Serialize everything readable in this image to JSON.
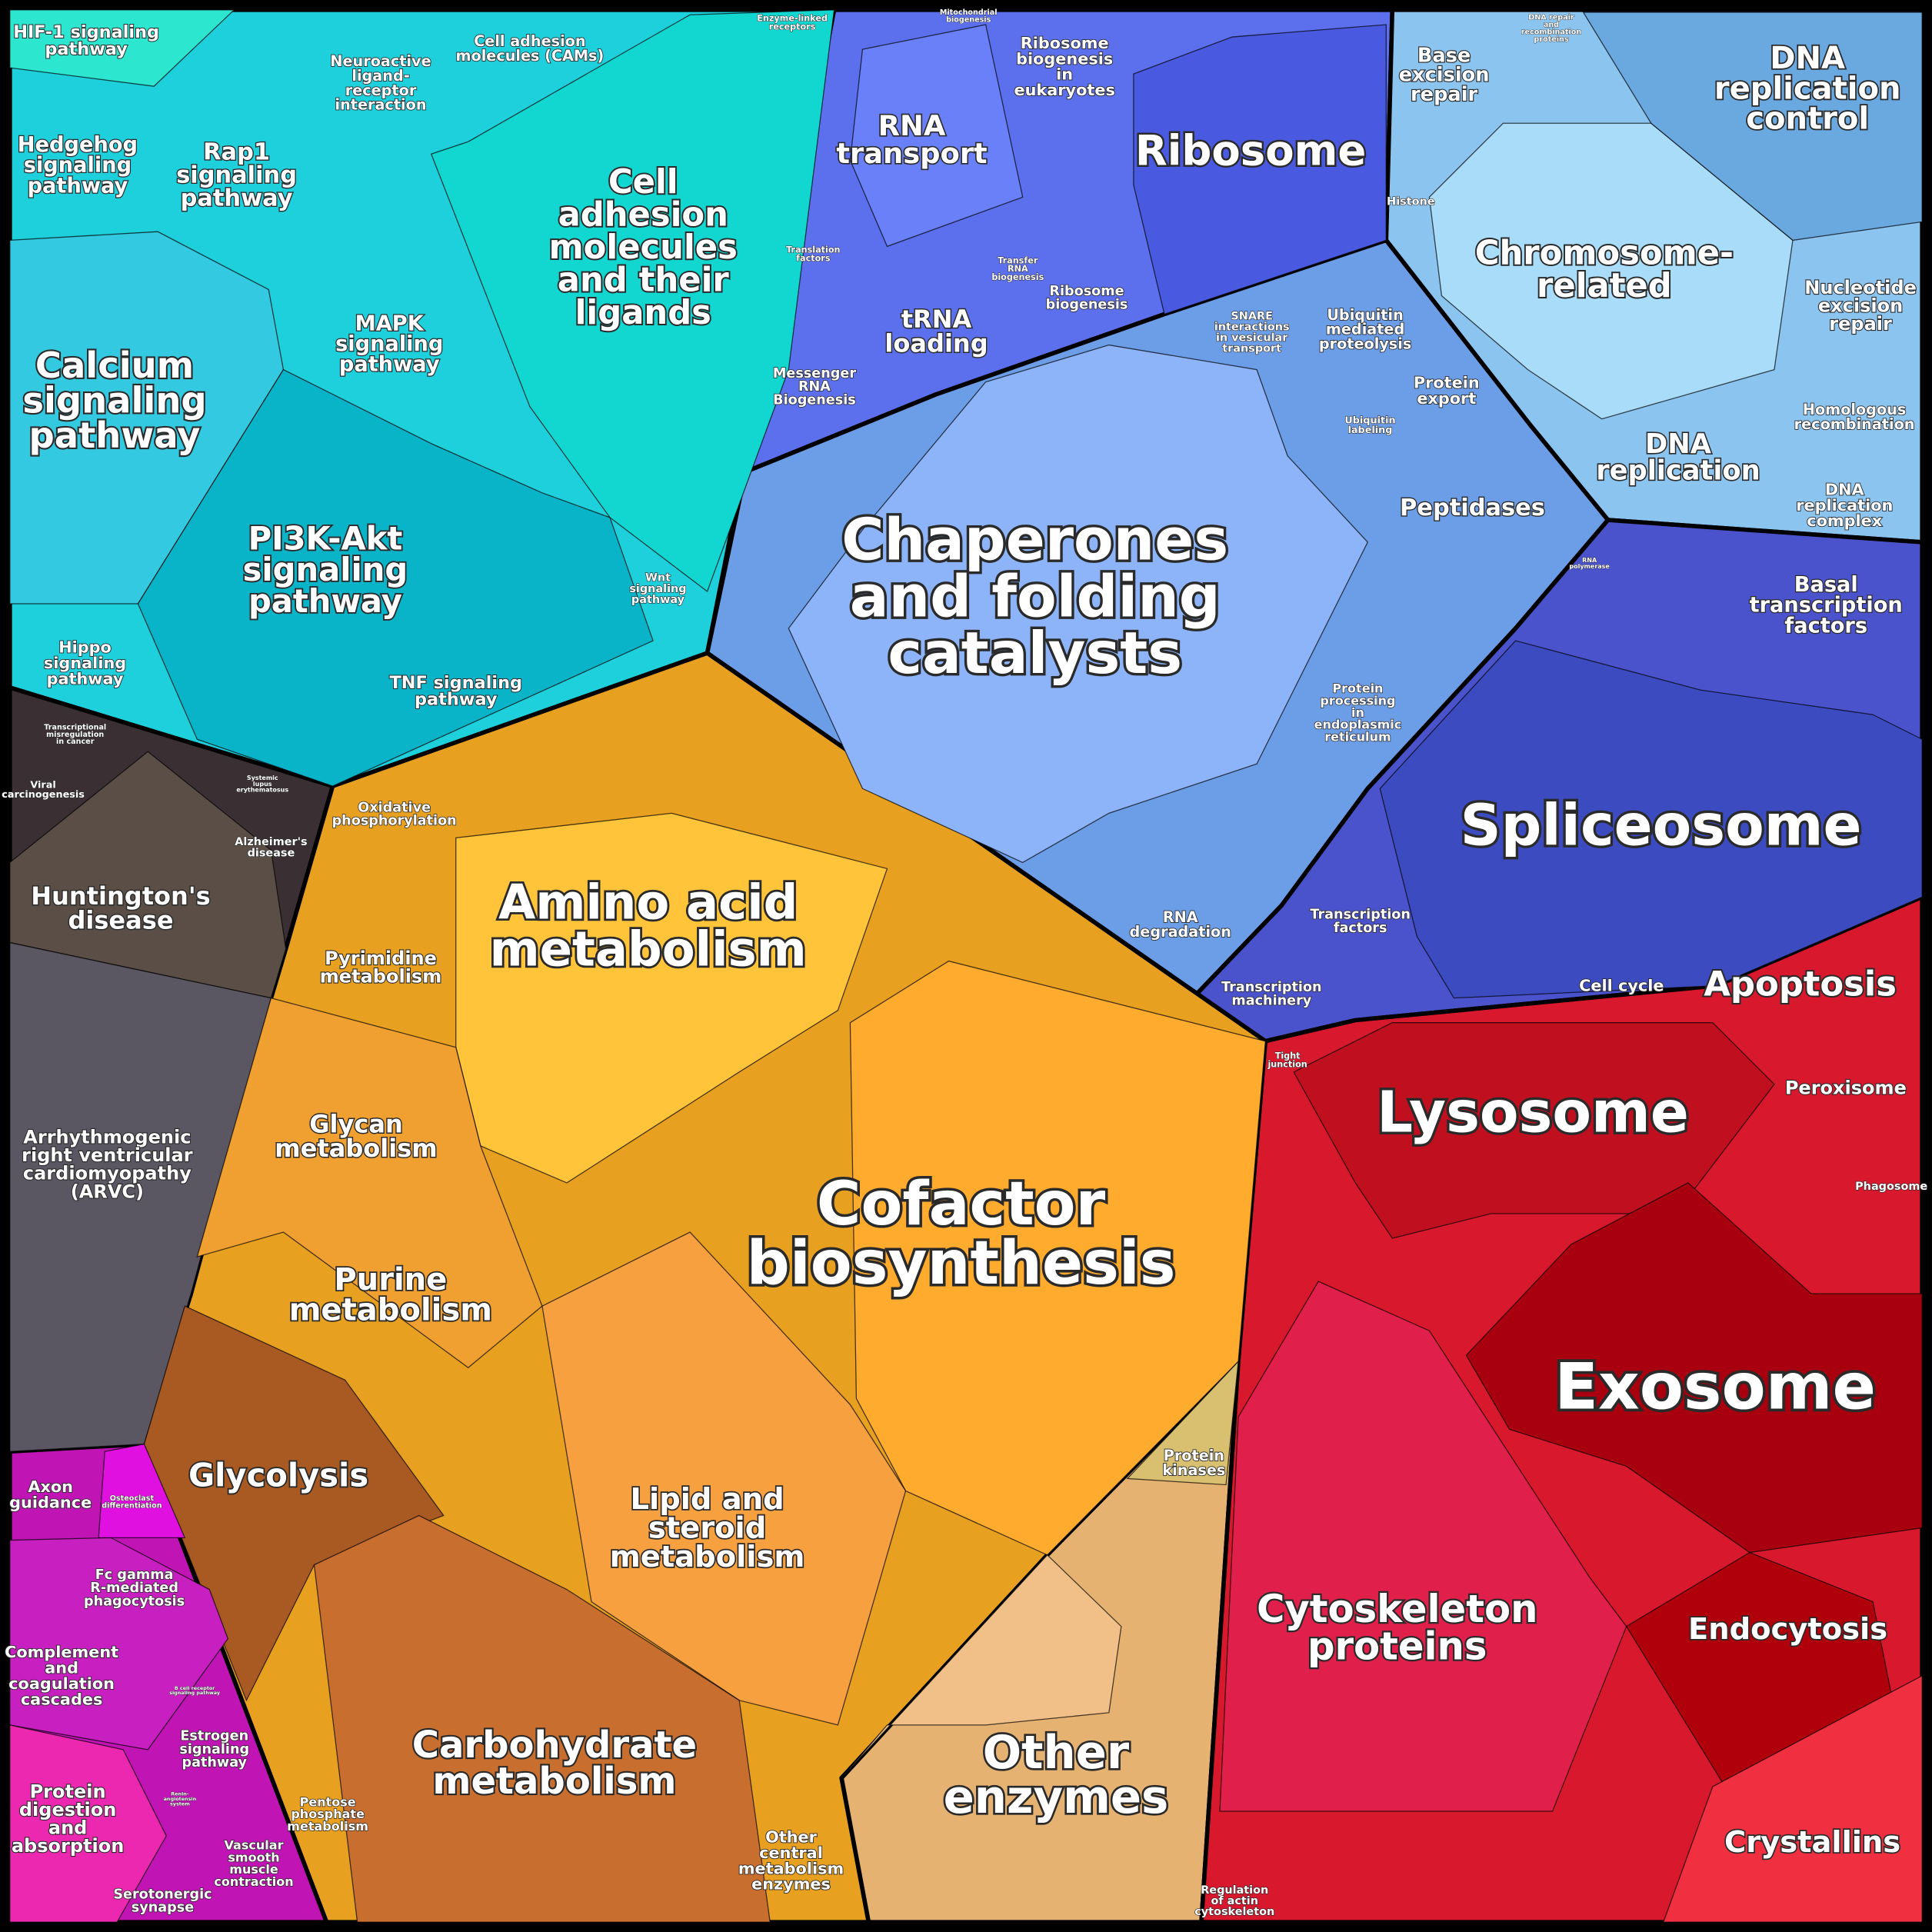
{
  "groups": [
    {
      "cells": [
        "HIF-1 signaling\npathway",
        "Hedgehog\nsignaling\npathway",
        "Rap1\nsignaling\npathway",
        "Calcium\nsignaling\npathway",
        "Neuroactive\nligand-\nreceptor\ninteraction",
        "Cell adhesion\nmolecules (CAMs)",
        "Enzyme-linked\nreceptors",
        "Cell\nadhesion\nmolecules\nand their\nligands",
        "MAPK\nsignaling\npathway",
        "PI3K-Akt\nsignaling\npathway",
        "Hippo\nsignaling\npathway",
        "Wnt\nsignaling\npathway",
        "TNF signaling\npathway"
      ]
    },
    {
      "cells": [
        "Mitochondrial\nbiogenesis",
        "Ribosome\nbiogenesis\nin\neukaryotes",
        "RNA\ntransport",
        "Ribosome",
        "Translation\nfactors",
        "tRNA\nloading",
        "Transfer\nRNA\nbiogenesis",
        "Ribosome\nbiogenesis",
        "Messenger\nRNA\nBiogenesis"
      ]
    },
    {
      "cells": [
        "Base\nexcision\nrepair",
        "DNA repair\nand\nrecombination\nproteins",
        "DNA\nreplication\ncontrol",
        "Histone",
        "Chromosome-\nrelated",
        "Nucleotide\nexcision\nrepair",
        "Homologous\nrecombination",
        "DNA\nreplication",
        "DNA\nreplication\ncomplex"
      ]
    },
    {
      "cells": [
        "SNARE\ninteractions\nin vesicular\ntransport",
        "Ubiquitin\nmediated\nproteolysis",
        "Protein\nexport",
        "Ubiquitin\nlabeling",
        "Peptidases",
        "Chaperones\nand folding\ncatalysts",
        "Protein\nprocessing\nin\nendoplasmic\nreticulum",
        "RNA\ndegradation"
      ]
    },
    {
      "cells": [
        "RNA\npolymerase",
        "Basal\ntranscription\nfactors",
        "Spliceosome",
        "Transcription\nfactors",
        "Transcription\nmachinery"
      ]
    },
    {
      "cells": [
        "Transcriptional\nmisregulation\nin cancer",
        "Viral\ncarcinogenesis",
        "Systemic\nlupus\nerythematosus",
        "Alzheimer's\ndisease",
        "Huntington's\ndisease",
        "Arrhythmogenic\nright ventricular\ncardiomyopathy\n(ARVC)"
      ]
    },
    {
      "cells": [
        "Oxidative\nphosphorylation",
        "Amino acid\nmetabolism",
        "Pyrimidine\nmetabolism",
        "Glycan\nmetabolism",
        "Purine\nmetabolism",
        "Cofactor\nbiosynthesis",
        "Lipid and\nsteroid\nmetabolism",
        "Glycolysis",
        "Carbohydrate\nmetabolism",
        "Pentose\nphosphate\nmetabolism",
        "Other\ncentral\nmetabolism\nenzymes"
      ]
    },
    {
      "cells": [
        "Protein\nkinases",
        "Other\nenzymes"
      ]
    },
    {
      "cells": [
        "Cell cycle",
        "Apoptosis",
        "Tight\njunction",
        "Lysosome",
        "Peroxisome",
        "Phagosome",
        "Exosome",
        "Endocytosis",
        "Cytoskeleton\nproteins",
        "Crystallins",
        "Regulation\nof actin\ncytoskeleton"
      ]
    },
    {
      "cells": [
        "Axon\nguidance",
        "Osteoclast\ndifferentiation",
        "Fc gamma\nR-mediated\nphagocytosis",
        "Complement\nand\ncoagulation\ncascades",
        "B cell receptor\nsignaling pathway",
        "Estrogen\nsignaling\npathway",
        "Renin-\nangiotensin\nsystem",
        "Protein\ndigestion\nand\nabsorption",
        "Serotonergic\nsynapse",
        "Vascular\nsmooth\nmuscle\ncontraction"
      ]
    }
  ]
}
